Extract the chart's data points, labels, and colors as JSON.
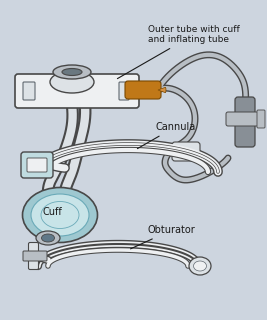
{
  "background_color": "#cdd5df",
  "labels": {
    "outer_tube": "Outer tube with cuff\nand inflating tube",
    "cuff": "Cuff",
    "cannula": "Cannula",
    "obturator": "Obturator"
  },
  "colors": {
    "body_gray": "#b8bec4",
    "body_light": "#dde2e6",
    "body_white": "#eef0f2",
    "cuff_blue": "#9ec8d0",
    "cuff_blue2": "#6aaab8",
    "cuff_light": "#c8e4e8",
    "orange": "#c07818",
    "orange_light": "#d49040",
    "tube_gray": "#a0a8b0",
    "connector_gray": "#888f96",
    "text_dark": "#1a1a1a",
    "line_dark": "#484848",
    "line_med": "#606870",
    "white_ish": "#eaedf0",
    "glass_blue": "#c0dce0"
  }
}
